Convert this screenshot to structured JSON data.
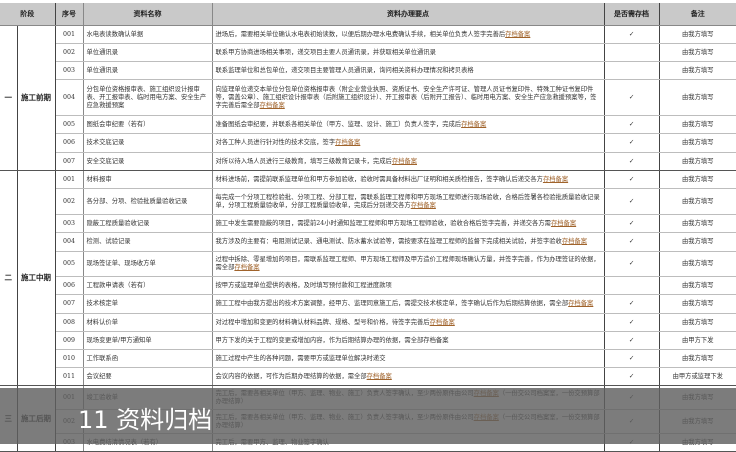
{
  "headers": {
    "phase": "阶段",
    "seq": "序号",
    "name": "资料名称",
    "points": "资料办理要点",
    "archive": "是否需存档",
    "notes": "备注"
  },
  "link_text": "存档备案",
  "check": "✓",
  "phases": [
    {
      "no": "一",
      "name": "施工前期",
      "rows": [
        {
          "seq": "001",
          "name": "水电表读数确认单据",
          "text": "进场后，需要相关单位确认水电表初始读数，以便后期办理水电费确认手续，相关单位负责人签字完善后",
          "link": true,
          "suffix": "",
          "archive": true,
          "note": "由我方填写",
          "h": 18
        },
        {
          "seq": "002",
          "name": "单位通讯录",
          "text": "联系甲方协商进场相关事项，递交项目主要人员通讯录，并获取相关单位通讯录",
          "link": false,
          "suffix": "",
          "archive": false,
          "note": "由我方填写",
          "h": 18
        },
        {
          "seq": "003",
          "name": "单位通讯录",
          "text": "联系监理单位和总包单位，递交项目主要管理人员通讯录，询问相关资料办理情况和拷贝表格",
          "link": false,
          "suffix": "",
          "archive": false,
          "note": "由我方填写",
          "h": 18
        },
        {
          "seq": "004",
          "name": "分包单位资格报审表、施工组织设计报审表、开工报审表、临时用电方案、安全生产应急救援预案",
          "text": "向监理单位递交本单位分包单位资格报审表（附企业营业执照、资质证书、安全生产许可证、管理人员证书复印件、特殊工种证书复印件等，需盖公章）、施工组织设计报审表（后附施工组织设计）、开工报审表（后附开工报告）、临时用电方案、安全生产应急救援预案等，签字完善后需全部",
          "link": true,
          "suffix": "",
          "archive": true,
          "note": "由我方填写",
          "h": 36
        },
        {
          "seq": "005",
          "name": "图纸会审纪要（若有）",
          "text": "准备图纸会审纪要，并联系各相关单位（甲方、监理、设计、施工）负责人签字，完成后",
          "link": true,
          "suffix": "",
          "archive": true,
          "note": "由我方填写",
          "h": 18
        },
        {
          "seq": "006",
          "name": "技术交底记录",
          "text": "对各工种人员进行针对性的技术交底，签字",
          "link": true,
          "suffix": "",
          "archive": true,
          "note": "由我方填写",
          "h": 19
        },
        {
          "seq": "007",
          "name": "安全交底记录",
          "text": "对所以待入场人员进行三级教育，填写三级教育记录卡，完成后",
          "link": true,
          "suffix": "",
          "archive": true,
          "note": "由我方填写",
          "h": 18
        }
      ]
    },
    {
      "no": "二",
      "name": "施工中期",
      "rows": [
        {
          "seq": "001",
          "name": "材料报审",
          "text": "材料进场前，需提前联系监理单位和甲方参加验收，验收时需具备材料出厂证明和相关质检报告，签字确认后递交各方",
          "link": true,
          "suffix": "",
          "archive": true,
          "note": "由我方填写",
          "h": 18
        },
        {
          "seq": "002",
          "name": "各分部、分项、检验批质量验收记录",
          "text": "每完成一个分项工程检验批、分项工程、分部工程，需联系监理工程师和甲方现场工程师进行现场验收，合格后签署各检验批质量验收记录单，分项工程质量验收单，分部工程质量验收单，完成后分别递交各方",
          "link": true,
          "suffix": "",
          "archive": true,
          "note": "由我方填写",
          "h": 26
        },
        {
          "seq": "003",
          "name": "隐蔽工程质量验收记录",
          "text": "施工中发生需要隐蔽的项目，需提前24小时通知监理工程师和甲方现场工程师验收，验收合格后签字完善，并递交各方需",
          "link": true,
          "suffix": "",
          "archive": true,
          "note": "由我方填写",
          "h": 18
        },
        {
          "seq": "004",
          "name": "检测、试验记录",
          "text": "我方涉及的主要有：电阻测试记录、通电测试、防水蓄水试验等，需按要求在监理工程师的监督下完成相关试验，并签字验收",
          "link": true,
          "suffix": "",
          "archive": true,
          "note": "由我方填写",
          "h": 19
        },
        {
          "seq": "005",
          "name": "现场签证单、现场收方单",
          "text": "过程中拆除、零星增加的项目，需联系监理工程师、甲方现场工程师及甲方造价工程师现场确认方量，并签字完善，作为办理签证的依据，需全部",
          "link": true,
          "suffix": "",
          "archive": true,
          "note": "由我方填写",
          "h": 25
        },
        {
          "seq": "006",
          "name": "工程款申请表（若有）",
          "text": "按甲方或监理单位提供的表格，及时填写预付款和工程进度款项",
          "link": false,
          "suffix": "",
          "archive": false,
          "note": "由我方填写",
          "h": 18
        },
        {
          "seq": "007",
          "name": "技术核定单",
          "text": "施工工程中由我方提出的技术方案调整，经甲方、监理同意施工后，需提交技术核定单，签字确认后作为后期结算依据，需全部",
          "link": true,
          "suffix": "",
          "archive": true,
          "note": "由我方填写",
          "h": 19
        },
        {
          "seq": "008",
          "name": "材料认价单",
          "text": "对过程中增加和变更的材料确认材料品牌、规格、型号和价格，待签字完善后",
          "link": true,
          "suffix": "",
          "archive": true,
          "note": "由我方填写",
          "h": 18
        },
        {
          "seq": "009",
          "name": "现场变更单/甲方通知单",
          "text": "甲方下发的关于工程的变更或增加内容，作为后期结算办理的依据，需全部存档备案",
          "link": false,
          "suffix": "",
          "archive": true,
          "note": "由甲方下发",
          "h": 18
        },
        {
          "seq": "010",
          "name": "工作联系函",
          "text": "施工过程中产生的各种问题，需要甲方或监理单位解决时递交",
          "link": false,
          "suffix": "",
          "archive": true,
          "note": "由我方填写",
          "h": 18
        },
        {
          "seq": "011",
          "name": "会议纪要",
          "text": "会议内容的依据，可作为后期办理结算的依据，需全部",
          "link": true,
          "suffix": "",
          "archive": true,
          "note": "由甲方或监理下发",
          "h": 18
        }
      ]
    },
    {
      "no": "三",
      "name": "施工后期",
      "rows": [
        {
          "seq": "001",
          "name": "竣工验收单",
          "text": "完工后，需要各相关单位（甲方、监理、物业、施工）负责人签字确认，至少两份原件由公司",
          "link": true,
          "suffix": "（一份交公司档案室，一份交预算部办理结算）",
          "archive": true,
          "note": "由我方填写",
          "h": 24
        },
        {
          "seq": "002",
          "name": "",
          "text": "完工后，需要各相关单位（甲方、监理、物业、施工）负责人签字确认，至少两份原件由公司",
          "link": true,
          "suffix": "（一份交公司档案室，一份交预算部办理结算）",
          "archive": true,
          "note": "由我方填写",
          "h": 24
        },
        {
          "seq": "003",
          "name": "水电费结清情况表（若有）",
          "text": "完工后，需要甲方、监理、物业签字确认",
          "link": false,
          "suffix": "",
          "archive": true,
          "note": "由我方填写",
          "h": 18
        }
      ]
    }
  ],
  "overlay": {
    "title": "11 资料归档",
    "background": "#5f5f5f"
  },
  "colors": {
    "header_bg": "#c9c9c9",
    "link": "#a0632b"
  }
}
